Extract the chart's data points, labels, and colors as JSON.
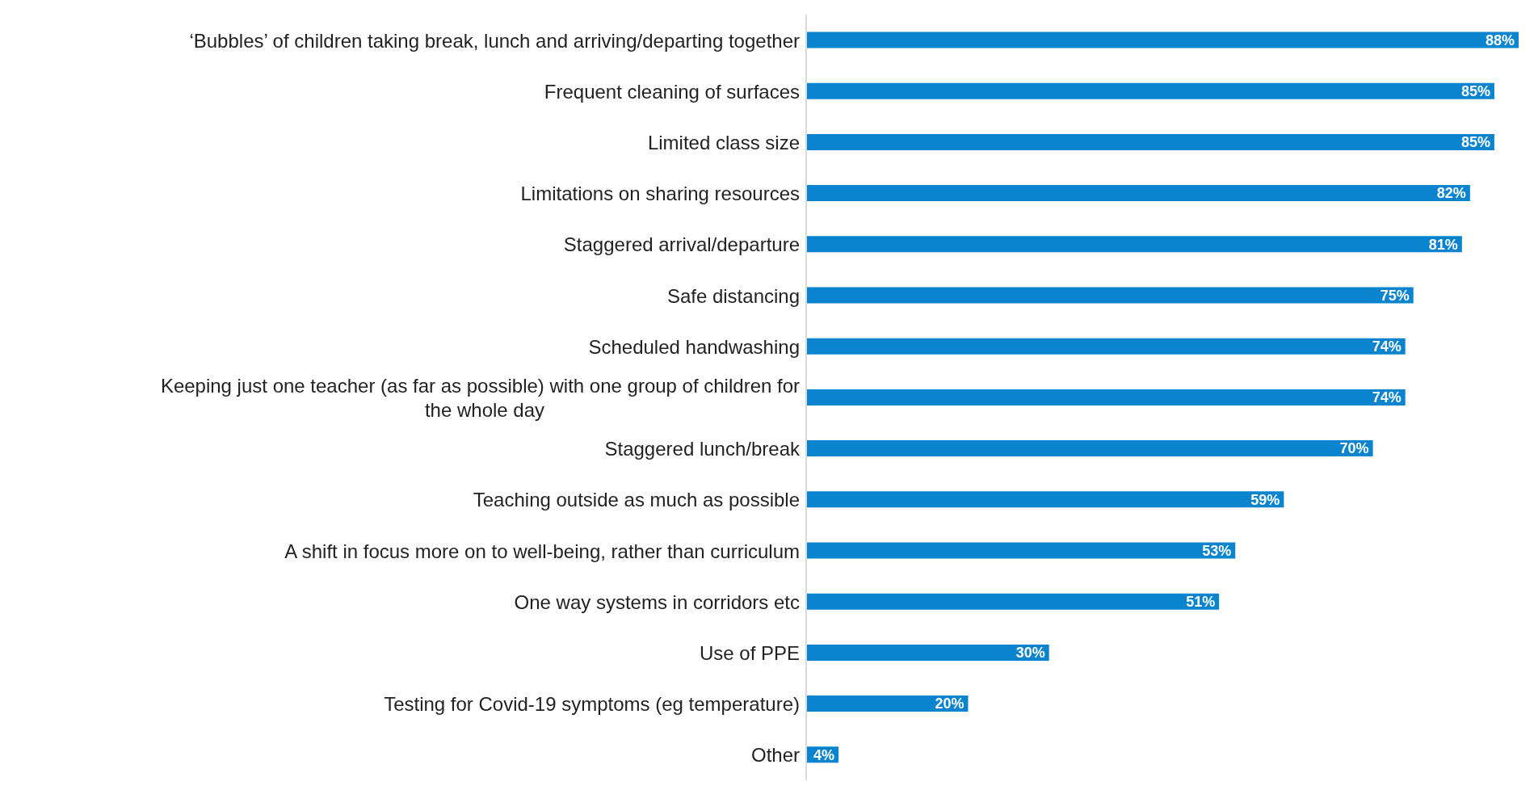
{
  "chart_data": {
    "type": "bar",
    "orientation": "horizontal",
    "categories": [
      "‘Bubbles’ of children taking break, lunch and arriving/departing together",
      "Frequent cleaning of surfaces",
      "Limited class size",
      "Limitations on sharing resources",
      "Staggered arrival/departure",
      "Safe distancing",
      "Scheduled handwashing",
      "Keeping just one teacher (as far as possible) with one group of children for the whole day",
      "Staggered lunch/break",
      "Teaching outside as much as possible",
      "A shift in focus more on to well-being, rather than curriculum",
      "One way systems in corridors etc",
      "Use of PPE",
      "Testing for Covid-19 symptoms (eg temperature)",
      "Other"
    ],
    "values": [
      88,
      85,
      85,
      82,
      81,
      75,
      74,
      74,
      70,
      59,
      53,
      51,
      30,
      20,
      4
    ],
    "value_labels": [
      "88%",
      "85%",
      "85%",
      "82%",
      "81%",
      "75%",
      "74%",
      "74%",
      "70%",
      "59%",
      "53%",
      "51%",
      "30%",
      "20%",
      "4%"
    ],
    "color": "#0a84cf",
    "xlim": [
      0,
      88
    ],
    "tick_labels": "y",
    "grid": false,
    "legend": false
  }
}
